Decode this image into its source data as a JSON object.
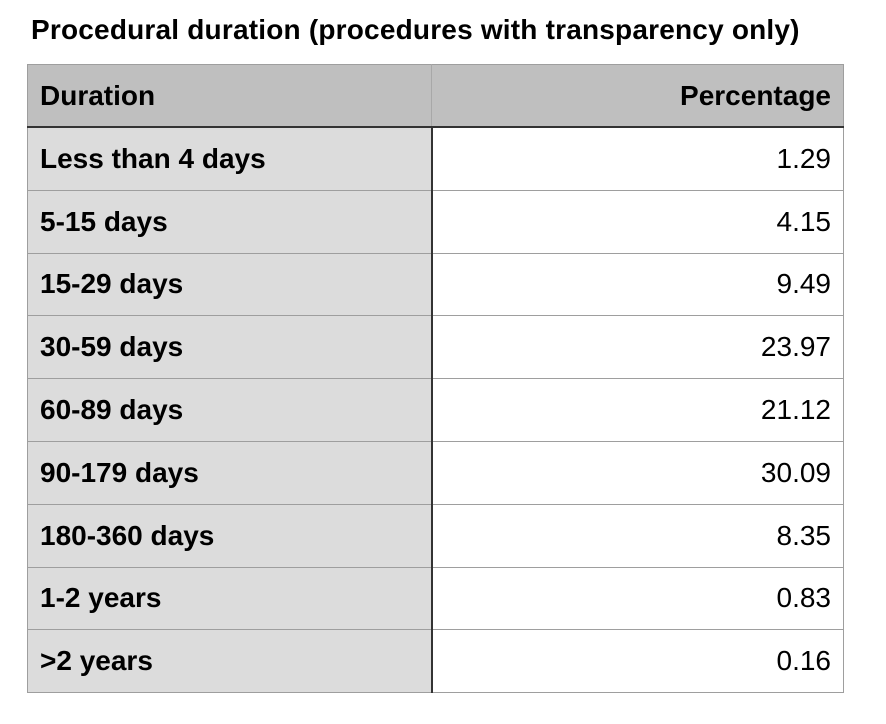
{
  "page": {
    "title": "Procedural duration (procedures with transparency only)"
  },
  "table": {
    "headers": {
      "duration": "Duration",
      "percentage": "Percentage"
    },
    "rows": [
      {
        "duration": "Less than 4 days",
        "percentage": "1.29"
      },
      {
        "duration": "5-15 days",
        "percentage": "4.15"
      },
      {
        "duration": "15-29 days",
        "percentage": "9.49"
      },
      {
        "duration": "30-59 days",
        "percentage": "23.97"
      },
      {
        "duration": "60-89 days",
        "percentage": "21.12"
      },
      {
        "duration": "90-179 days",
        "percentage": "30.09"
      },
      {
        "duration": "180-360 days",
        "percentage": "8.35"
      },
      {
        "duration": "1-2 years",
        "percentage": "0.83"
      },
      {
        "duration": ">2 years",
        "percentage": "0.16"
      }
    ]
  },
  "colors": {
    "header_bg": "#bfbfbf",
    "label_bg": "#dcdcdc",
    "dark_border": "#333333",
    "light_border": "#9e9e9e",
    "text": "#000000",
    "background": "#ffffff"
  },
  "chart_data": {
    "type": "table",
    "title": "Procedural duration (procedures with transparency only)",
    "columns": [
      "Duration",
      "Percentage"
    ],
    "categories": [
      "Less than 4 days",
      "5-15 days",
      "15-29 days",
      "30-59 days",
      "60-89 days",
      "90-179 days",
      "180-360 days",
      "1-2 years",
      ">2 years"
    ],
    "values": [
      1.29,
      4.15,
      9.49,
      23.97,
      21.12,
      30.09,
      8.35,
      0.83,
      0.16
    ],
    "value_unit": "percent",
    "legend": "none",
    "grid": "cell-borders"
  }
}
